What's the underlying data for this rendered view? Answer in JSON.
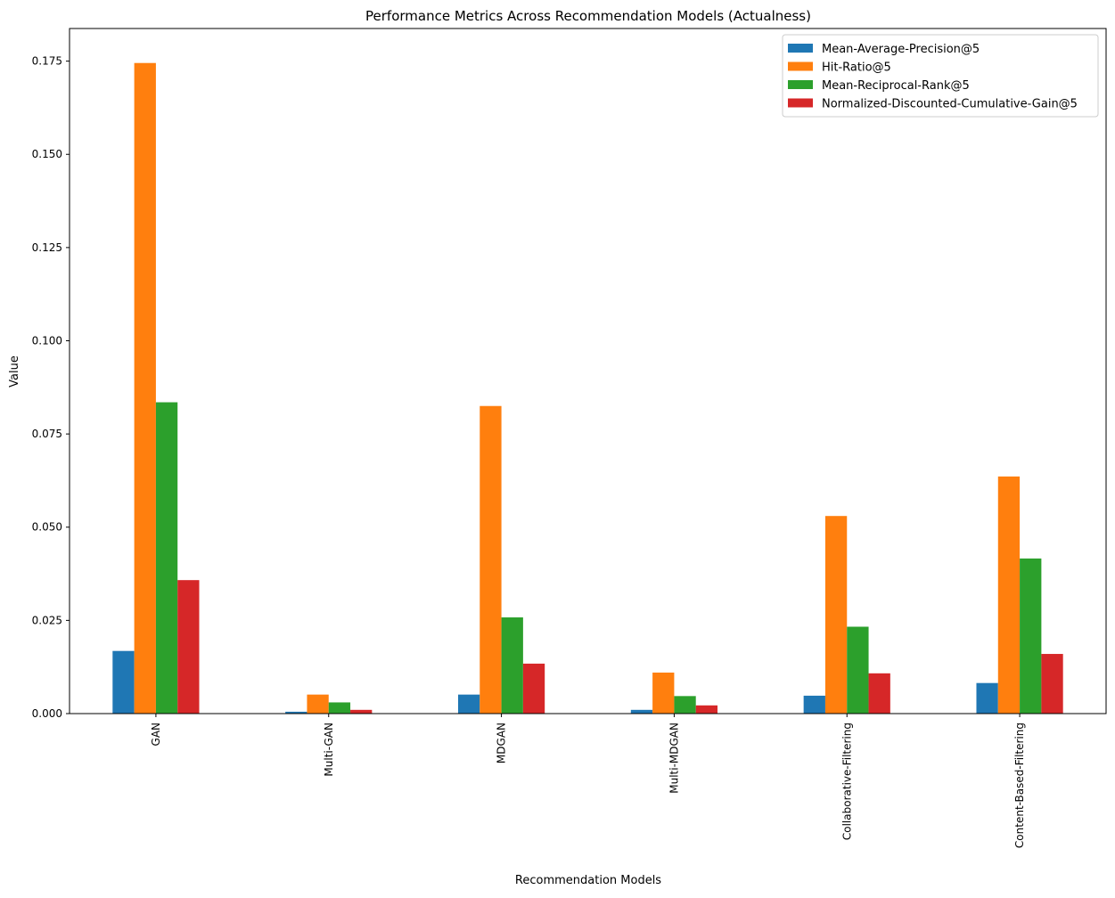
{
  "chart_data": {
    "type": "bar",
    "title": "Performance Metrics Across Recommendation Models (Actualness)",
    "xlabel": "Recommendation Models",
    "ylabel": "Value",
    "ylim": [
      0,
      0.18375
    ],
    "yticks": [
      0.0,
      0.025,
      0.05,
      0.075,
      0.1,
      0.125,
      0.15,
      0.175
    ],
    "ytick_labels": [
      "0.000",
      "0.025",
      "0.050",
      "0.075",
      "0.100",
      "0.125",
      "0.150",
      "0.175"
    ],
    "grid": false,
    "legend_position": "top-right",
    "categories": [
      "GAN",
      "Multi-GAN",
      "MDGAN",
      "Multi-MDGAN",
      "Collaborative-Filtering",
      "Content-Based-Filtering"
    ],
    "series": [
      {
        "name": "Mean-Average-Precision@5",
        "color": "#1f77b4",
        "values": [
          0.0168,
          0.0005,
          0.0051,
          0.001,
          0.0048,
          0.0082
        ]
      },
      {
        "name": "Hit-Ratio@5",
        "color": "#ff7f0e",
        "values": [
          0.1745,
          0.0051,
          0.0825,
          0.011,
          0.053,
          0.0636
        ]
      },
      {
        "name": "Mean-Reciprocal-Rank@5",
        "color": "#2ca02c",
        "values": [
          0.0835,
          0.003,
          0.0258,
          0.0047,
          0.0233,
          0.0416
        ]
      },
      {
        "name": "Normalized-Discounted-Cumulative-Gain@5",
        "color": "#d62728",
        "values": [
          0.0358,
          0.001,
          0.0134,
          0.0022,
          0.0108,
          0.016
        ]
      }
    ]
  }
}
